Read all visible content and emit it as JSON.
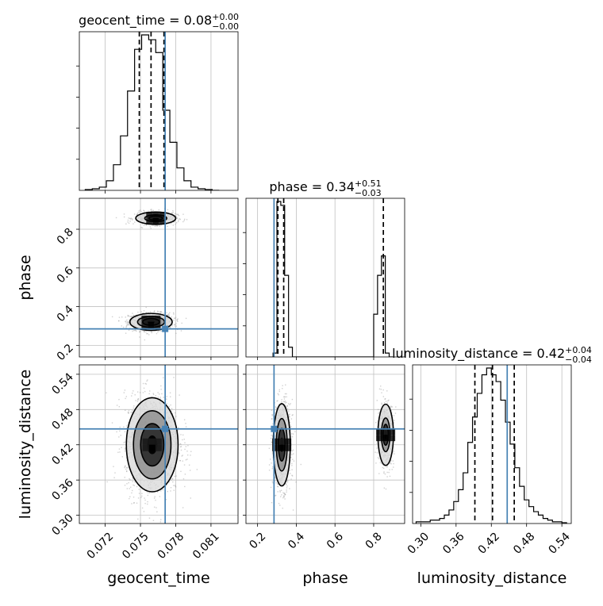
{
  "chart_data": {
    "type": "corner",
    "parameters": [
      "geocent_time",
      "phase",
      "luminosity_distance"
    ],
    "axis_labels": [
      "geocent_time",
      "phase",
      "luminosity_distance"
    ],
    "ranges": {
      "geocent_time": [
        0.0698,
        0.0833
      ],
      "phase": [
        0.14,
        0.96
      ],
      "luminosity_distance": [
        0.286,
        0.556
      ]
    },
    "ticks": {
      "geocent_time": [
        0.072,
        0.075,
        0.078,
        0.081
      ],
      "phase": [
        0.2,
        0.4,
        0.6,
        0.8
      ],
      "luminosity_distance": [
        0.3,
        0.36,
        0.42,
        0.48,
        0.54
      ]
    },
    "tick_labels": {
      "geocent_time": [
        "0.072",
        "0.075",
        "0.078",
        "0.081"
      ],
      "phase_x": [
        "0.2",
        "0.4",
        "0.6",
        "0.8"
      ],
      "phase_y": [
        "0.2",
        "0.4",
        "0.6",
        "0.8"
      ],
      "luminosity_distance_x": [
        "0.30",
        "0.36",
        "0.42",
        "0.48",
        "0.54"
      ],
      "luminosity_distance_y": [
        "0.30",
        "0.36",
        "0.42",
        "0.48",
        "0.54"
      ]
    },
    "titles": {
      "geocent_time": {
        "name": "geocent_time = 0.08",
        "plus": "+0.00",
        "minus": "−0.00"
      },
      "phase": {
        "name": "phase = 0.34",
        "plus": "+0.51",
        "minus": "−0.03"
      },
      "luminosity_distance": {
        "name": "luminosity_distance = 0.42",
        "plus": "+0.04",
        "minus": "−0.04"
      }
    },
    "truths": {
      "geocent_time": 0.0771,
      "phase": 0.285,
      "luminosity_distance": 0.447
    },
    "quantiles": {
      "geocent_time": [
        0.0749,
        0.0759,
        0.077
      ],
      "phase": [
        0.305,
        0.335,
        0.85
      ],
      "luminosity_distance": [
        0.392,
        0.422,
        0.459
      ]
    },
    "histograms": {
      "geocent_time": {
        "edges": [
          0.0703,
          0.0709,
          0.0715,
          0.0721,
          0.0727,
          0.0733,
          0.0739,
          0.0745,
          0.0751,
          0.0757,
          0.0763,
          0.0769,
          0.0775,
          0.0781,
          0.0787,
          0.0793,
          0.0799,
          0.0805,
          0.0811,
          0.0817
        ],
        "counts": [
          0.5,
          1,
          2,
          6,
          16,
          34,
          62,
          88,
          97,
          94,
          86,
          50,
          30,
          14,
          6,
          2,
          1,
          0.5,
          0
        ]
      },
      "phase": {
        "edges": [
          0.28,
          0.3,
          0.32,
          0.34,
          0.36,
          0.38,
          0.4,
          0.42,
          0.44,
          0.46,
          0.48,
          0.5,
          0.52,
          0.54,
          0.56,
          0.58,
          0.6,
          0.62,
          0.64,
          0.66,
          0.68,
          0.7,
          0.72,
          0.74,
          0.76,
          0.78,
          0.8,
          0.82,
          0.84,
          0.86,
          0.88,
          0.9
        ],
        "counts": [
          2,
          80,
          78,
          42,
          5,
          0,
          0,
          0,
          0,
          0,
          0,
          0,
          0,
          0,
          0,
          0,
          0,
          0,
          0,
          0,
          0,
          0,
          0,
          0,
          0,
          0,
          22,
          42,
          52,
          2,
          0
        ]
      },
      "luminosity_distance": {
        "edges": [
          0.292,
          0.3,
          0.308,
          0.316,
          0.324,
          0.332,
          0.34,
          0.348,
          0.356,
          0.364,
          0.372,
          0.38,
          0.388,
          0.396,
          0.404,
          0.412,
          0.42,
          0.428,
          0.436,
          0.444,
          0.452,
          0.46,
          0.468,
          0.476,
          0.484,
          0.492,
          0.5,
          0.508,
          0.516,
          0.524,
          0.532,
          0.54,
          0.548
        ],
        "counts": [
          1,
          1,
          1,
          2,
          2,
          3,
          5,
          8,
          13,
          20,
          30,
          48,
          63,
          77,
          88,
          92,
          88,
          84,
          73,
          60,
          47,
          33,
          22,
          14,
          10,
          7,
          5,
          3,
          2,
          1,
          1,
          0.5
        ]
      }
    },
    "density_blobs": [
      {
        "x": "geocent_time",
        "y": "phase",
        "cx": 0.0759,
        "cy": 0.321,
        "sx": 0.0009,
        "sy": 0.022,
        "weight": 0.64
      },
      {
        "x": "geocent_time",
        "y": "phase",
        "cx": 0.0763,
        "cy": 0.857,
        "sx": 0.00085,
        "sy": 0.016,
        "weight": 0.36
      },
      {
        "x": "geocent_time",
        "y": "luminosity_distance",
        "cx": 0.076,
        "cy": 0.42,
        "sx": 0.0011,
        "sy": 0.04,
        "weight": 1.0
      },
      {
        "x": "phase",
        "y": "luminosity_distance",
        "cx": 0.325,
        "cy": 0.42,
        "sx": 0.022,
        "sy": 0.035,
        "weight": 0.64
      },
      {
        "x": "phase",
        "y": "luminosity_distance",
        "cx": 0.862,
        "cy": 0.437,
        "sx": 0.02,
        "sy": 0.026,
        "weight": 0.36
      }
    ],
    "colors": {
      "truth": "#4682b4",
      "hist": "#000000",
      "grid": "#c0c0c0",
      "scatter": "#9a9a9a",
      "contour": "#000000",
      "shade_light": "#d8d8d8",
      "shade_mid": "#8c8c8c",
      "shade_dark": "#2a2a2a",
      "shade_peak": "#000000"
    },
    "grid": true
  }
}
